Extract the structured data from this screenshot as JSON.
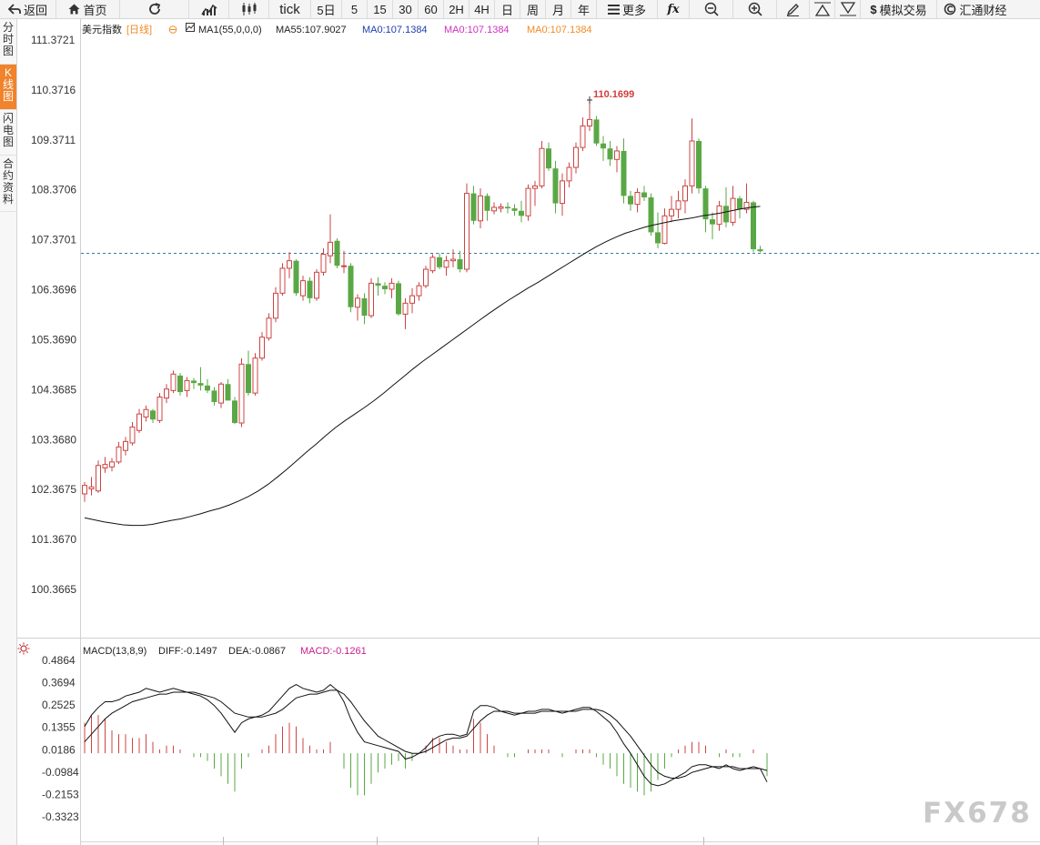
{
  "toolbar": {
    "back": "返回",
    "home": "首页",
    "refresh": "",
    "tick": "tick",
    "periods": [
      "5日",
      "5",
      "15",
      "30",
      "60",
      "2H",
      "4H",
      "日",
      "周",
      "月",
      "年"
    ],
    "more": "更多",
    "fx": "fx",
    "simulate": "模拟交易",
    "brand": "汇通财经"
  },
  "sidebar": [
    {
      "label": "分时图"
    },
    {
      "label": "K线图"
    },
    {
      "label": "闪电图"
    },
    {
      "label": "合约资料"
    }
  ],
  "legend": {
    "symbol": "美元指数",
    "period": "[日线]",
    "ma1": "MA1(55,0,0,0)",
    "ma55": "MA55:107.9027",
    "ma0a": "MA0:107.1384",
    "ma0b": "MA0:107.1384",
    "ma0c": "MA0:107.1384"
  },
  "macd_legend": {
    "name": "MACD(13,8,9)",
    "diff": "DIFF:-0.1497",
    "dea": "DEA:-0.0867",
    "macd": "MACD:-0.1261"
  },
  "watermark": "FX678",
  "colors": {
    "up": "#cc4444",
    "down": "#5aa845",
    "ma": "#000000",
    "dashed": "#2a7fa8",
    "active_tab": "#f0832b",
    "macd_label": "#c8208f"
  },
  "chart_data": [
    {
      "type": "candlestick",
      "title": "美元指数 [日线]",
      "ylim": [
        100.0,
        111.6
      ],
      "y_ticks": [
        "111.3721",
        "110.3716",
        "109.3711",
        "108.3706",
        "107.3701",
        "106.3696",
        "105.3690",
        "104.3685",
        "103.3680",
        "102.3675",
        "101.3670",
        "100.3665"
      ],
      "last_price_line": 107.14,
      "annotations": [
        {
          "text": "110.1699",
          "value": 110.17
        }
      ],
      "candles": [
        {
          "o": 102.28,
          "h": 102.52,
          "l": 102.12,
          "c": 102.45
        },
        {
          "o": 102.38,
          "h": 102.62,
          "l": 102.25,
          "c": 102.42
        },
        {
          "o": 102.34,
          "h": 102.95,
          "l": 102.3,
          "c": 102.85
        },
        {
          "o": 102.8,
          "h": 103.02,
          "l": 102.7,
          "c": 102.87
        },
        {
          "o": 102.82,
          "h": 103.0,
          "l": 102.73,
          "c": 102.92
        },
        {
          "o": 102.92,
          "h": 103.32,
          "l": 102.88,
          "c": 103.22
        },
        {
          "o": 103.15,
          "h": 103.42,
          "l": 103.05,
          "c": 103.33
        },
        {
          "o": 103.3,
          "h": 103.72,
          "l": 103.25,
          "c": 103.62
        },
        {
          "o": 103.55,
          "h": 103.98,
          "l": 103.5,
          "c": 103.88
        },
        {
          "o": 103.82,
          "h": 104.05,
          "l": 103.73,
          "c": 103.97
        },
        {
          "o": 103.95,
          "h": 103.98,
          "l": 103.7,
          "c": 103.77
        },
        {
          "o": 103.75,
          "h": 104.3,
          "l": 103.7,
          "c": 104.22
        },
        {
          "o": 104.2,
          "h": 104.48,
          "l": 104.1,
          "c": 104.38
        },
        {
          "o": 104.35,
          "h": 104.75,
          "l": 104.3,
          "c": 104.68
        },
        {
          "o": 104.65,
          "h": 104.7,
          "l": 104.25,
          "c": 104.32
        },
        {
          "o": 104.35,
          "h": 104.62,
          "l": 104.22,
          "c": 104.55
        },
        {
          "o": 104.55,
          "h": 104.6,
          "l": 104.38,
          "c": 104.5
        },
        {
          "o": 104.5,
          "h": 104.82,
          "l": 104.35,
          "c": 104.45
        },
        {
          "o": 104.45,
          "h": 104.58,
          "l": 104.3,
          "c": 104.35
        },
        {
          "o": 104.35,
          "h": 104.42,
          "l": 104.05,
          "c": 104.12
        },
        {
          "o": 104.1,
          "h": 104.52,
          "l": 104.0,
          "c": 104.48
        },
        {
          "o": 104.48,
          "h": 104.58,
          "l": 104.15,
          "c": 104.15
        },
        {
          "o": 104.15,
          "h": 104.22,
          "l": 103.68,
          "c": 103.7
        },
        {
          "o": 103.7,
          "h": 105.0,
          "l": 103.62,
          "c": 104.88
        },
        {
          "o": 104.88,
          "h": 105.15,
          "l": 104.25,
          "c": 104.3
        },
        {
          "o": 104.3,
          "h": 105.1,
          "l": 104.25,
          "c": 105.0
        },
        {
          "o": 105.0,
          "h": 105.52,
          "l": 104.95,
          "c": 105.42
        },
        {
          "o": 105.4,
          "h": 105.9,
          "l": 105.35,
          "c": 105.8
        },
        {
          "o": 105.8,
          "h": 106.42,
          "l": 105.72,
          "c": 106.3
        },
        {
          "o": 106.3,
          "h": 106.9,
          "l": 106.25,
          "c": 106.8
        },
        {
          "o": 106.8,
          "h": 107.12,
          "l": 106.6,
          "c": 106.95
        },
        {
          "o": 106.95,
          "h": 106.98,
          "l": 106.25,
          "c": 106.3
        },
        {
          "o": 106.25,
          "h": 106.65,
          "l": 106.15,
          "c": 106.55
        },
        {
          "o": 106.55,
          "h": 106.62,
          "l": 106.1,
          "c": 106.2
        },
        {
          "o": 106.2,
          "h": 106.78,
          "l": 106.15,
          "c": 106.72
        },
        {
          "o": 106.72,
          "h": 107.2,
          "l": 106.65,
          "c": 107.08
        },
        {
          "o": 107.05,
          "h": 107.88,
          "l": 106.9,
          "c": 107.32
        },
        {
          "o": 107.35,
          "h": 107.4,
          "l": 106.8,
          "c": 106.85
        },
        {
          "o": 106.85,
          "h": 107.15,
          "l": 106.7,
          "c": 106.85
        },
        {
          "o": 106.85,
          "h": 106.9,
          "l": 105.92,
          "c": 106.02
        },
        {
          "o": 106.02,
          "h": 106.28,
          "l": 105.75,
          "c": 106.2
        },
        {
          "o": 106.2,
          "h": 106.3,
          "l": 105.68,
          "c": 105.85
        },
        {
          "o": 105.85,
          "h": 106.6,
          "l": 105.8,
          "c": 106.5
        },
        {
          "o": 106.5,
          "h": 106.62,
          "l": 106.25,
          "c": 106.45
        },
        {
          "o": 106.45,
          "h": 106.52,
          "l": 106.28,
          "c": 106.38
        },
        {
          "o": 106.38,
          "h": 106.6,
          "l": 106.2,
          "c": 106.5
        },
        {
          "o": 106.5,
          "h": 106.55,
          "l": 105.85,
          "c": 105.88
        },
        {
          "o": 105.88,
          "h": 106.2,
          "l": 105.58,
          "c": 106.1
        },
        {
          "o": 106.1,
          "h": 106.4,
          "l": 105.9,
          "c": 106.25
        },
        {
          "o": 106.25,
          "h": 106.52,
          "l": 106.15,
          "c": 106.45
        },
        {
          "o": 106.45,
          "h": 106.85,
          "l": 106.4,
          "c": 106.78
        },
        {
          "o": 106.75,
          "h": 107.08,
          "l": 106.7,
          "c": 107.02
        },
        {
          "o": 107.02,
          "h": 107.1,
          "l": 106.78,
          "c": 106.82
        },
        {
          "o": 106.82,
          "h": 107.05,
          "l": 106.65,
          "c": 106.95
        },
        {
          "o": 106.95,
          "h": 107.18,
          "l": 106.82,
          "c": 106.98
        },
        {
          "o": 106.98,
          "h": 107.15,
          "l": 106.72,
          "c": 106.78
        },
        {
          "o": 106.78,
          "h": 108.5,
          "l": 106.72,
          "c": 108.3
        },
        {
          "o": 108.3,
          "h": 108.45,
          "l": 107.68,
          "c": 107.75
        },
        {
          "o": 107.75,
          "h": 108.4,
          "l": 107.6,
          "c": 108.25
        },
        {
          "o": 108.25,
          "h": 108.3,
          "l": 107.75,
          "c": 107.95
        },
        {
          "o": 107.95,
          "h": 108.12,
          "l": 107.88,
          "c": 108.02
        },
        {
          "o": 108.0,
          "h": 108.1,
          "l": 107.92,
          "c": 108.03
        },
        {
          "o": 108.03,
          "h": 108.12,
          "l": 107.9,
          "c": 108.0
        },
        {
          "o": 108.0,
          "h": 108.08,
          "l": 107.85,
          "c": 107.95
        },
        {
          "o": 107.95,
          "h": 108.15,
          "l": 107.72,
          "c": 107.85
        },
        {
          "o": 107.85,
          "h": 108.48,
          "l": 107.75,
          "c": 108.4
        },
        {
          "o": 108.4,
          "h": 108.55,
          "l": 108.05,
          "c": 108.45
        },
        {
          "o": 108.45,
          "h": 109.35,
          "l": 108.4,
          "c": 109.2
        },
        {
          "o": 109.2,
          "h": 109.32,
          "l": 108.75,
          "c": 108.8
        },
        {
          "o": 108.8,
          "h": 108.95,
          "l": 107.9,
          "c": 108.1
        },
        {
          "o": 108.1,
          "h": 108.7,
          "l": 107.85,
          "c": 108.55
        },
        {
          "o": 108.55,
          "h": 108.92,
          "l": 108.42,
          "c": 108.82
        },
        {
          "o": 108.82,
          "h": 109.32,
          "l": 108.7,
          "c": 109.22
        },
        {
          "o": 109.22,
          "h": 109.82,
          "l": 109.15,
          "c": 109.65
        },
        {
          "o": 109.65,
          "h": 110.17,
          "l": 109.55,
          "c": 109.78
        },
        {
          "o": 109.78,
          "h": 109.85,
          "l": 109.25,
          "c": 109.3
        },
        {
          "o": 109.3,
          "h": 109.45,
          "l": 108.95,
          "c": 109.2
        },
        {
          "o": 109.2,
          "h": 109.35,
          "l": 108.85,
          "c": 108.98
        },
        {
          "o": 108.98,
          "h": 109.25,
          "l": 108.72,
          "c": 109.15
        },
        {
          "o": 109.15,
          "h": 109.4,
          "l": 108.1,
          "c": 108.25
        },
        {
          "o": 108.25,
          "h": 108.35,
          "l": 107.95,
          "c": 108.08
        },
        {
          "o": 108.08,
          "h": 108.4,
          "l": 107.92,
          "c": 108.32
        },
        {
          "o": 108.32,
          "h": 108.45,
          "l": 108.15,
          "c": 108.22
        },
        {
          "o": 108.22,
          "h": 108.3,
          "l": 107.45,
          "c": 107.52
        },
        {
          "o": 107.52,
          "h": 107.92,
          "l": 107.2,
          "c": 107.3
        },
        {
          "o": 107.3,
          "h": 108.0,
          "l": 107.28,
          "c": 107.85
        },
        {
          "o": 107.85,
          "h": 108.25,
          "l": 107.72,
          "c": 107.98
        },
        {
          "o": 107.98,
          "h": 108.35,
          "l": 107.8,
          "c": 108.15
        },
        {
          "o": 108.15,
          "h": 108.58,
          "l": 107.9,
          "c": 108.45
        },
        {
          "o": 108.45,
          "h": 109.8,
          "l": 108.3,
          "c": 109.35
        },
        {
          "o": 109.35,
          "h": 109.4,
          "l": 108.3,
          "c": 108.4
        },
        {
          "o": 108.4,
          "h": 108.45,
          "l": 107.52,
          "c": 107.78
        },
        {
          "o": 107.78,
          "h": 107.92,
          "l": 107.38,
          "c": 107.68
        },
        {
          "o": 107.68,
          "h": 108.15,
          "l": 107.55,
          "c": 108.05
        },
        {
          "o": 108.05,
          "h": 108.42,
          "l": 107.62,
          "c": 107.72
        },
        {
          "o": 107.72,
          "h": 108.45,
          "l": 107.65,
          "c": 108.2
        },
        {
          "o": 108.2,
          "h": 108.25,
          "l": 107.8,
          "c": 107.98
        },
        {
          "o": 107.98,
          "h": 108.5,
          "l": 107.9,
          "c": 108.12
        },
        {
          "o": 108.12,
          "h": 108.15,
          "l": 107.12,
          "c": 107.18
        },
        {
          "o": 107.18,
          "h": 107.25,
          "l": 107.12,
          "c": 107.14
        }
      ],
      "ma55": [
        101.8,
        101.76,
        101.72,
        101.69,
        101.66,
        101.65,
        101.65,
        101.67,
        101.71,
        101.75,
        101.78,
        101.83,
        101.88,
        101.94,
        101.99,
        102.06,
        102.14,
        102.23,
        102.34,
        102.47,
        102.62,
        102.78,
        102.95,
        103.12,
        103.28,
        103.45,
        103.61,
        103.75,
        103.88,
        104.01,
        104.15,
        104.3,
        104.46,
        104.62,
        104.78,
        104.93,
        105.07,
        105.21,
        105.35,
        105.49,
        105.63,
        105.77,
        105.91,
        106.04,
        106.17,
        106.29,
        106.41,
        106.52,
        106.64,
        106.76,
        106.88,
        107.0,
        107.12,
        107.23,
        107.33,
        107.42,
        107.5,
        107.56,
        107.62,
        107.67,
        107.71,
        107.75,
        107.78,
        107.81,
        107.85,
        107.88,
        107.91,
        107.95,
        107.99,
        108.02,
        108.04
      ]
    },
    {
      "type": "macd",
      "title": "MACD(13,8,9)",
      "ylim": [
        -0.41,
        0.53
      ],
      "y_ticks": [
        "0.4864",
        "0.3694",
        "0.2525",
        "0.1355",
        "0.0186",
        "-0.0984",
        "-0.2153",
        "-0.3323"
      ],
      "diff": [
        0.14,
        0.2,
        0.24,
        0.27,
        0.27,
        0.28,
        0.3,
        0.31,
        0.32,
        0.34,
        0.33,
        0.32,
        0.33,
        0.34,
        0.33,
        0.32,
        0.31,
        0.3,
        0.28,
        0.25,
        0.21,
        0.16,
        0.11,
        0.16,
        0.18,
        0.19,
        0.2,
        0.22,
        0.26,
        0.3,
        0.34,
        0.36,
        0.34,
        0.33,
        0.32,
        0.33,
        0.36,
        0.33,
        0.27,
        0.18,
        0.11,
        0.06,
        0.05,
        0.04,
        0.03,
        0.02,
        0.01,
        -0.03,
        -0.02,
        0.0,
        0.03,
        0.07,
        0.09,
        0.1,
        0.1,
        0.09,
        0.1,
        0.22,
        0.25,
        0.25,
        0.24,
        0.22,
        0.21,
        0.2,
        0.21,
        0.22,
        0.22,
        0.23,
        0.23,
        0.22,
        0.21,
        0.22,
        0.23,
        0.24,
        0.24,
        0.22,
        0.19,
        0.16,
        0.11,
        0.05,
        0.0,
        -0.06,
        -0.12,
        -0.16,
        -0.17,
        -0.16,
        -0.14,
        -0.12,
        -0.1,
        -0.07,
        -0.06,
        -0.06,
        -0.07,
        -0.08,
        -0.06,
        -0.08,
        -0.09,
        -0.08,
        -0.07,
        -0.08,
        -0.15
      ],
      "dea": [
        0.06,
        0.1,
        0.14,
        0.18,
        0.21,
        0.23,
        0.25,
        0.27,
        0.28,
        0.29,
        0.3,
        0.31,
        0.31,
        0.32,
        0.32,
        0.32,
        0.32,
        0.31,
        0.3,
        0.29,
        0.27,
        0.24,
        0.21,
        0.2,
        0.19,
        0.19,
        0.19,
        0.2,
        0.21,
        0.23,
        0.26,
        0.29,
        0.3,
        0.31,
        0.31,
        0.32,
        0.33,
        0.33,
        0.31,
        0.27,
        0.22,
        0.17,
        0.13,
        0.09,
        0.07,
        0.05,
        0.03,
        0.01,
        0.0,
        0.0,
        0.01,
        0.03,
        0.05,
        0.07,
        0.08,
        0.08,
        0.09,
        0.13,
        0.17,
        0.2,
        0.22,
        0.22,
        0.22,
        0.21,
        0.21,
        0.21,
        0.21,
        0.22,
        0.22,
        0.22,
        0.22,
        0.22,
        0.22,
        0.23,
        0.23,
        0.23,
        0.22,
        0.2,
        0.17,
        0.13,
        0.09,
        0.04,
        -0.01,
        -0.06,
        -0.1,
        -0.12,
        -0.13,
        -0.13,
        -0.12,
        -0.1,
        -0.09,
        -0.08,
        -0.07,
        -0.07,
        -0.07,
        -0.07,
        -0.08,
        -0.08,
        -0.08,
        -0.08,
        -0.09
      ],
      "macd": [
        0.16,
        0.2,
        0.2,
        0.18,
        0.12,
        0.1,
        0.1,
        0.08,
        0.08,
        0.1,
        0.06,
        0.02,
        0.04,
        0.04,
        0.02,
        0.0,
        -0.02,
        -0.02,
        -0.04,
        -0.08,
        -0.12,
        -0.16,
        -0.2,
        -0.08,
        -0.02,
        0.0,
        0.02,
        0.04,
        0.1,
        0.14,
        0.16,
        0.14,
        0.08,
        0.04,
        0.02,
        0.02,
        0.06,
        0.0,
        -0.08,
        -0.18,
        -0.22,
        -0.22,
        -0.16,
        -0.1,
        -0.08,
        -0.06,
        -0.04,
        -0.08,
        -0.04,
        0.0,
        0.04,
        0.08,
        0.08,
        0.06,
        0.04,
        0.02,
        0.02,
        0.18,
        0.16,
        0.1,
        0.04,
        0.0,
        -0.02,
        -0.02,
        0.0,
        0.02,
        0.02,
        0.02,
        0.02,
        0.0,
        -0.02,
        0.0,
        0.02,
        0.02,
        0.02,
        -0.02,
        -0.06,
        -0.08,
        -0.12,
        -0.16,
        -0.18,
        -0.2,
        -0.22,
        -0.2,
        -0.14,
        -0.08,
        -0.02,
        0.02,
        0.04,
        0.06,
        0.06,
        0.04,
        0.0,
        -0.02,
        0.02,
        -0.02,
        -0.02,
        0.0,
        0.02,
        0.0,
        -0.12
      ]
    }
  ]
}
